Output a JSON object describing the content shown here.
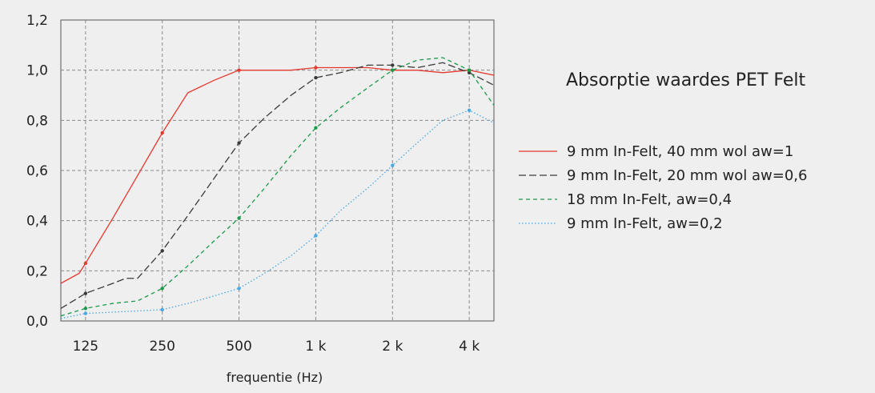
{
  "chart_data": {
    "type": "line",
    "title": "Absorptie waardes PET Felt",
    "xlabel": "frequentie (Hz)",
    "ylabel": "",
    "x_scale": "log",
    "xlim": [
      100,
      5000
    ],
    "ylim": [
      0,
      1.2
    ],
    "y_ticks": [
      "0,0",
      "0,2",
      "0,4",
      "0,6",
      "0,8",
      "1,0",
      "1,2"
    ],
    "x_ticks": [
      {
        "value": 125,
        "label": "125"
      },
      {
        "value": 250,
        "label": "250"
      },
      {
        "value": 500,
        "label": "500"
      },
      {
        "value": 1000,
        "label": "1 k"
      },
      {
        "value": 2000,
        "label": "2 k"
      },
      {
        "value": 4000,
        "label": "4 k"
      }
    ],
    "grid": true,
    "legend_position": "right",
    "series": [
      {
        "name": "9 mm In-Felt, 40 mm wol aw=1",
        "color": "#e5382f",
        "dash": "solid",
        "points": [
          [
            100,
            0.15
          ],
          [
            118,
            0.19
          ],
          [
            125,
            0.23
          ],
          [
            160,
            0.41
          ],
          [
            200,
            0.58
          ],
          [
            250,
            0.75
          ],
          [
            315,
            0.91
          ],
          [
            400,
            0.96
          ],
          [
            500,
            1.0
          ],
          [
            630,
            1.0
          ],
          [
            800,
            1.0
          ],
          [
            1000,
            1.01
          ],
          [
            1250,
            1.01
          ],
          [
            1600,
            1.01
          ],
          [
            2000,
            1.0
          ],
          [
            2500,
            1.0
          ],
          [
            3150,
            0.99
          ],
          [
            4000,
            1.0
          ],
          [
            5000,
            0.98
          ]
        ],
        "markers": [
          [
            125,
            0.23
          ],
          [
            250,
            0.75
          ],
          [
            500,
            1.0
          ],
          [
            1000,
            1.01
          ],
          [
            2000,
            1.0
          ],
          [
            4000,
            1.0
          ]
        ]
      },
      {
        "name": "9 mm In-Felt, 20 mm wol aw=0,6",
        "color": "#3a3a3a",
        "dash": "long-dash",
        "points": [
          [
            100,
            0.05
          ],
          [
            125,
            0.11
          ],
          [
            160,
            0.15
          ],
          [
            180,
            0.17
          ],
          [
            200,
            0.17
          ],
          [
            250,
            0.28
          ],
          [
            315,
            0.42
          ],
          [
            400,
            0.57
          ],
          [
            500,
            0.71
          ],
          [
            630,
            0.81
          ],
          [
            800,
            0.9
          ],
          [
            1000,
            0.97
          ],
          [
            1250,
            0.99
          ],
          [
            1600,
            1.02
          ],
          [
            2000,
            1.02
          ],
          [
            2500,
            1.01
          ],
          [
            3150,
            1.03
          ],
          [
            4000,
            0.99
          ],
          [
            5000,
            0.94
          ]
        ],
        "markers": [
          [
            125,
            0.11
          ],
          [
            250,
            0.28
          ],
          [
            500,
            0.71
          ],
          [
            1000,
            0.97
          ],
          [
            2000,
            1.02
          ],
          [
            4000,
            0.99
          ]
        ]
      },
      {
        "name": "18 mm In-Felt, aw=0,4",
        "color": "#1a9a4a",
        "dash": "dash",
        "points": [
          [
            100,
            0.02
          ],
          [
            125,
            0.05
          ],
          [
            160,
            0.07
          ],
          [
            200,
            0.08
          ],
          [
            250,
            0.13
          ],
          [
            315,
            0.22
          ],
          [
            400,
            0.32
          ],
          [
            500,
            0.41
          ],
          [
            630,
            0.53
          ],
          [
            800,
            0.66
          ],
          [
            1000,
            0.77
          ],
          [
            1250,
            0.85
          ],
          [
            1600,
            0.93
          ],
          [
            2000,
            1.0
          ],
          [
            2500,
            1.04
          ],
          [
            3150,
            1.05
          ],
          [
            4000,
            1.0
          ],
          [
            5000,
            0.86
          ]
        ],
        "markers": [
          [
            125,
            0.05
          ],
          [
            250,
            0.13
          ],
          [
            500,
            0.41
          ],
          [
            1000,
            0.77
          ],
          [
            2000,
            1.0
          ],
          [
            4000,
            1.0
          ]
        ]
      },
      {
        "name": "9 mm In-Felt, aw=0,2",
        "color": "#4aa8e0",
        "dash": "dot",
        "points": [
          [
            100,
            0.01
          ],
          [
            125,
            0.03
          ],
          [
            160,
            0.035
          ],
          [
            200,
            0.04
          ],
          [
            250,
            0.045
          ],
          [
            315,
            0.07
          ],
          [
            400,
            0.1
          ],
          [
            500,
            0.13
          ],
          [
            630,
            0.19
          ],
          [
            800,
            0.26
          ],
          [
            1000,
            0.34
          ],
          [
            1250,
            0.44
          ],
          [
            1600,
            0.53
          ],
          [
            2000,
            0.62
          ],
          [
            2500,
            0.71
          ],
          [
            3150,
            0.8
          ],
          [
            4000,
            0.84
          ],
          [
            5000,
            0.79
          ]
        ],
        "markers": [
          [
            125,
            0.03
          ],
          [
            250,
            0.045
          ],
          [
            500,
            0.13
          ],
          [
            1000,
            0.34
          ],
          [
            2000,
            0.62
          ],
          [
            4000,
            0.84
          ]
        ]
      }
    ]
  }
}
